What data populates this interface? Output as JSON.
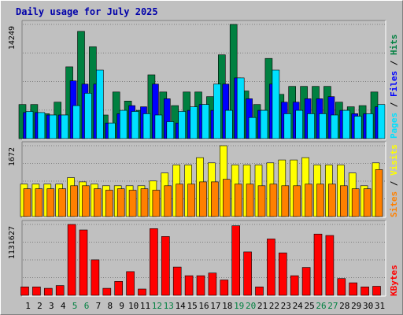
{
  "chart_data": [
    {
      "type": "bar",
      "title": "Daily usage for July 2025",
      "categories": [
        "1",
        "2",
        "3",
        "4",
        "5",
        "6",
        "7",
        "8",
        "9",
        "10",
        "11",
        "12",
        "13",
        "14",
        "15",
        "16",
        "17",
        "18",
        "19",
        "20",
        "21",
        "22",
        "23",
        "24",
        "25",
        "26",
        "27",
        "28",
        "29",
        "30",
        "31"
      ],
      "weekend_categories": [
        "5",
        "6",
        "12",
        "13",
        "19",
        "20",
        "26",
        "27"
      ],
      "ymax_label": "14249",
      "ylim": [
        0,
        14249
      ],
      "legend": [
        "Pages",
        "Files",
        "Hits"
      ],
      "series": [
        {
          "name": "Hits",
          "color": "#008040",
          "values": [
            4256,
            4256,
            3101,
            4545,
            8949,
            13383,
            11463,
            2949,
            5817,
            4692,
            3528,
            7964,
            5817,
            4116,
            5817,
            5817,
            5238,
            10460,
            14249,
            5944,
            4256,
            10000,
            5526,
            6517,
            6517,
            6517,
            6517,
            4545,
            3971,
            4116,
            5817
          ]
        },
        {
          "name": "Files",
          "color": "#0000ff",
          "values": [
            3252,
            3252,
            2949,
            2949,
            7201,
            6802,
            6802,
            1941,
            3101,
            4116,
            3971,
            6802,
            4972,
            1941,
            3528,
            4256,
            3528,
            6802,
            7577,
            4972,
            3528,
            6802,
            4545,
            4545,
            4972,
            4972,
            5238,
            3528,
            3101,
            3101,
            3971
          ]
        },
        {
          "name": "Pages",
          "color": "#00e0ff",
          "values": [
            3391,
            3252,
            2949,
            2949,
            4116,
            5659,
            8549,
            1941,
            3528,
            3391,
            3101,
            2949,
            2112,
            3391,
            3971,
            4256,
            6802,
            3528,
            7577,
            2637,
            3528,
            8549,
            3101,
            3528,
            3101,
            3101,
            2949,
            3528,
            2800,
            3101,
            4256
          ]
        }
      ]
    },
    {
      "type": "bar",
      "ymax_label": "1672",
      "ylim": [
        0,
        1672
      ],
      "legend": [
        "Sites",
        "Visits"
      ],
      "series": [
        {
          "name": "Visits",
          "color": "#ffff00",
          "values": [
            765,
            765,
            765,
            765,
            918,
            820,
            765,
            728,
            728,
            728,
            728,
            839,
            1028,
            1217,
            1217,
            1389,
            1267,
            1672,
            1217,
            1217,
            1217,
            1267,
            1335,
            1335,
            1389,
            1217,
            1217,
            1217,
            1028,
            728,
            1267
          ]
        },
        {
          "name": "Sites",
          "color": "#ff8000",
          "values": [
            655,
            655,
            655,
            655,
            728,
            728,
            655,
            623,
            655,
            623,
            655,
            623,
            728,
            765,
            765,
            820,
            820,
            878,
            765,
            765,
            728,
            765,
            728,
            728,
            765,
            765,
            765,
            728,
            655,
            655,
            1107
          ]
        }
      ]
    },
    {
      "type": "bar",
      "ymax_label": "1131627",
      "ylim": [
        0,
        1131627
      ],
      "legend": [
        "KBytes"
      ],
      "series": [
        {
          "name": "KBytes",
          "color": "#ff0000",
          "values": [
            134000,
            134000,
            112000,
            156000,
            1131627,
            1043000,
            567000,
            112000,
            223000,
            379000,
            101000,
            1065000,
            939000,
            452000,
            313000,
            313000,
            356000,
            245000,
            1110000,
            693000,
            134000,
            900000,
            678000,
            313000,
            445000,
            978000,
            956000,
            268000,
            200000,
            134000,
            145000
          ]
        }
      ]
    }
  ]
}
